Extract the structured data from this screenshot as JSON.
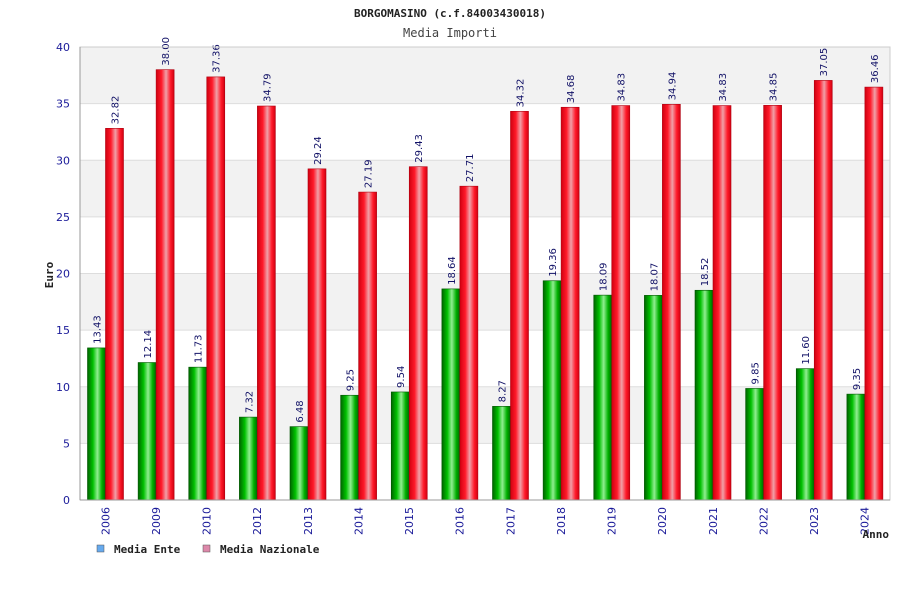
{
  "chart_data": {
    "type": "bar",
    "title": "BORGOMASINO (c.f.84003430018)",
    "subtitle": "Media Importi",
    "ylabel": "Euro",
    "xlabel": "Anno",
    "ylim": [
      0,
      40
    ],
    "yticks": [
      0,
      5,
      10,
      15,
      20,
      25,
      30,
      35,
      40
    ],
    "grid": true,
    "legend_position": "bottom-left",
    "categories": [
      "2006",
      "2009",
      "2010",
      "2012",
      "2013",
      "2014",
      "2015",
      "2016",
      "2017",
      "2018",
      "2019",
      "2020",
      "2021",
      "2022",
      "2023",
      "2024"
    ],
    "series": [
      {
        "name": "Media Ente",
        "color": "#00b000",
        "legend_color": "#66aaee",
        "values": [
          13.43,
          12.14,
          11.73,
          7.32,
          6.48,
          9.25,
          9.54,
          18.64,
          8.27,
          19.36,
          18.09,
          18.07,
          18.52,
          9.85,
          11.6,
          9.35
        ],
        "labels": [
          "13.43",
          "12.14",
          "11.73",
          "7.32",
          "6.48",
          "9.25",
          "9.54",
          "18.64",
          "8.27",
          "19.36",
          "18.09",
          "18.07",
          "18.52",
          "9.85",
          "11.60",
          "9.35"
        ]
      },
      {
        "name": "Media Nazionale",
        "color": "#e8001a",
        "legend_color": "#dd88aa",
        "values": [
          32.82,
          38.0,
          37.36,
          34.79,
          29.24,
          27.19,
          29.43,
          27.71,
          34.32,
          34.68,
          34.83,
          34.94,
          34.83,
          34.85,
          37.05,
          36.46
        ],
        "labels": [
          "32.82",
          "38.00",
          "37.36",
          "34.79",
          "29.24",
          "27.19",
          "29.43",
          "27.71",
          "34.32",
          "34.68",
          "34.83",
          "34.94",
          "34.83",
          "34.85",
          "37.05",
          "36.46"
        ]
      }
    ]
  }
}
